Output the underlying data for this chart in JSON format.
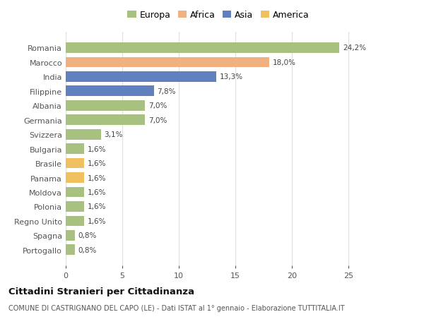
{
  "countries": [
    "Romania",
    "Marocco",
    "India",
    "Filippine",
    "Albania",
    "Germania",
    "Svizzera",
    "Bulgaria",
    "Brasile",
    "Panama",
    "Moldova",
    "Polonia",
    "Regno Unito",
    "Spagna",
    "Portogallo"
  ],
  "values": [
    24.2,
    18.0,
    13.3,
    7.8,
    7.0,
    7.0,
    3.1,
    1.6,
    1.6,
    1.6,
    1.6,
    1.6,
    1.6,
    0.8,
    0.8
  ],
  "labels": [
    "24,2%",
    "18,0%",
    "13,3%",
    "7,8%",
    "7,0%",
    "7,0%",
    "3,1%",
    "1,6%",
    "1,6%",
    "1,6%",
    "1,6%",
    "1,6%",
    "1,6%",
    "0,8%",
    "0,8%"
  ],
  "continents": [
    "Europa",
    "Africa",
    "Asia",
    "Asia",
    "Europa",
    "Europa",
    "Europa",
    "Europa",
    "America",
    "America",
    "Europa",
    "Europa",
    "Europa",
    "Europa",
    "Europa"
  ],
  "colors": {
    "Europa": "#a8c080",
    "Africa": "#f0b080",
    "Asia": "#6080c0",
    "America": "#f0c060"
  },
  "title": "Cittadini Stranieri per Cittadinanza",
  "subtitle": "COMUNE DI CASTRIGNANO DEL CAPO (LE) - Dati ISTAT al 1° gennaio - Elaborazione TUTTITALIA.IT",
  "xlim": [
    0,
    27
  ],
  "background_color": "#ffffff",
  "grid_color": "#e0e0e0"
}
